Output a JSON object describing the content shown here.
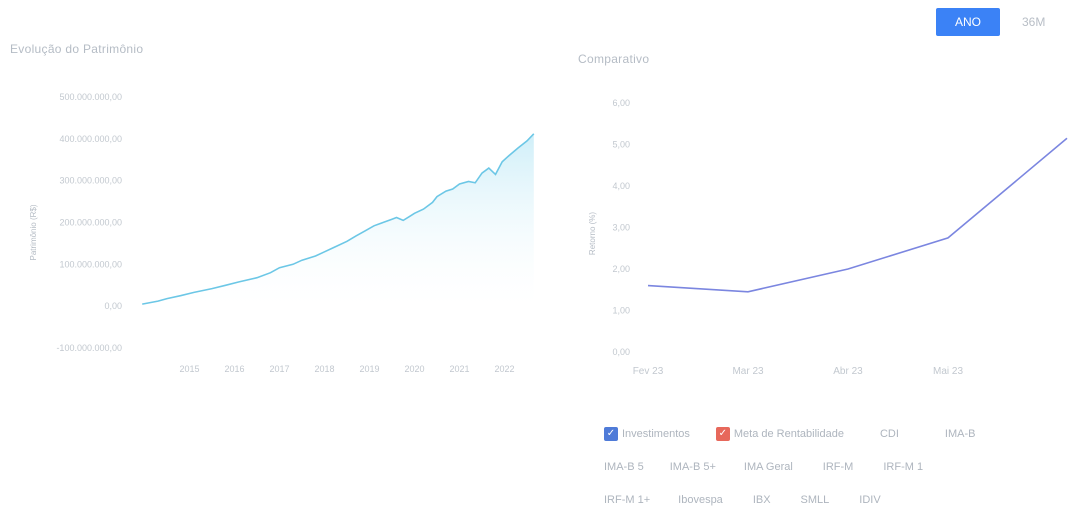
{
  "toggle": {
    "active": "ANO",
    "inactive": "36M"
  },
  "left_panel": {
    "title": "Evolução do Patrimônio"
  },
  "right_panel": {
    "title": "Comparativo"
  },
  "colors": {
    "accent": "#3b82f6",
    "line_left": "#6cc7e6",
    "area_left": "#cdeef8",
    "line_right": "#7b86e0",
    "legend_blue": "#4f7bd8",
    "legend_red": "#e7685b"
  },
  "legend": {
    "rows": [
      [
        {
          "label": "Investimentos",
          "checked": true,
          "color": "#4f7bd8"
        },
        {
          "label": "Meta de Rentabilidade",
          "checked": true,
          "color": "#e7685b"
        },
        {
          "label": "CDI",
          "checked": false
        },
        {
          "label": "IMA-B",
          "checked": false
        }
      ],
      [
        {
          "label": "IMA-B 5",
          "checked": false
        },
        {
          "label": "IMA-B 5+",
          "checked": false
        },
        {
          "label": "IMA Geral",
          "checked": false
        },
        {
          "label": "IRF-M",
          "checked": false
        },
        {
          "label": "IRF-M 1",
          "checked": false
        }
      ],
      [
        {
          "label": "IRF-M 1+",
          "checked": false
        },
        {
          "label": "Ibovespa",
          "checked": false
        },
        {
          "label": "IBX",
          "checked": false
        },
        {
          "label": "SMLL",
          "checked": false
        },
        {
          "label": "IDIV",
          "checked": false
        }
      ]
    ]
  },
  "chart_data": [
    {
      "type": "area",
      "title": "Evolução do Patrimônio",
      "ylabel": "Patrimônio (R$)",
      "xlabel": "",
      "x_ticks": [
        "2015",
        "2016",
        "2017",
        "2018",
        "2019",
        "2020",
        "2021",
        "2022"
      ],
      "y_ticks": [
        "-100.000.000,00",
        "0,00",
        "100.000.000,00",
        "200.000.000,00",
        "300.000.000,00",
        "400.000.000,00",
        "500.000.000,00"
      ],
      "ylim": [
        -100000000,
        500000000
      ],
      "xlim": [
        2014.4,
        2023.2
      ],
      "grid": false,
      "series": [
        {
          "x": [
            2014.45,
            2014.8,
            2015.0,
            2015.3,
            2015.6,
            2016.0,
            2016.3,
            2016.6,
            2017.0,
            2017.3,
            2017.5,
            2017.8,
            2018.0,
            2018.3,
            2018.5,
            2018.7,
            2019.0,
            2019.2,
            2019.4,
            2019.6,
            2019.8,
            2020.0,
            2020.1,
            2020.25,
            2020.4,
            2020.5,
            2020.7,
            2020.9,
            2021.0,
            2021.2,
            2021.35,
            2021.5,
            2021.7,
            2021.85,
            2022.0,
            2022.15,
            2022.3,
            2022.45,
            2022.6,
            2022.8,
            2023.0,
            2023.15
          ],
          "values": [
            5000000,
            12000000,
            18000000,
            25000000,
            33000000,
            42000000,
            50000000,
            58000000,
            68000000,
            80000000,
            92000000,
            100000000,
            110000000,
            120000000,
            130000000,
            140000000,
            155000000,
            168000000,
            180000000,
            192000000,
            200000000,
            208000000,
            212000000,
            205000000,
            215000000,
            222000000,
            232000000,
            248000000,
            262000000,
            275000000,
            280000000,
            292000000,
            298000000,
            295000000,
            318000000,
            330000000,
            315000000,
            345000000,
            360000000,
            378000000,
            395000000,
            412000000
          ]
        }
      ]
    },
    {
      "type": "line",
      "title": "Comparativo",
      "ylabel": "Retorno (%)",
      "xlabel": "",
      "categories": [
        "Fev 23",
        "Mar 23",
        "Abr 23",
        "Mai 23"
      ],
      "y_ticks": [
        "0,00",
        "1,00",
        "2,00",
        "3,00",
        "4,00",
        "5,00",
        "6,00"
      ],
      "ylim": [
        0,
        6
      ],
      "grid": false,
      "series": [
        {
          "name": "Investimentos",
          "x": [
            0,
            1,
            2,
            3,
            4.2
          ],
          "values": [
            1.6,
            1.45,
            2.0,
            2.75,
            5.15
          ]
        }
      ]
    }
  ]
}
